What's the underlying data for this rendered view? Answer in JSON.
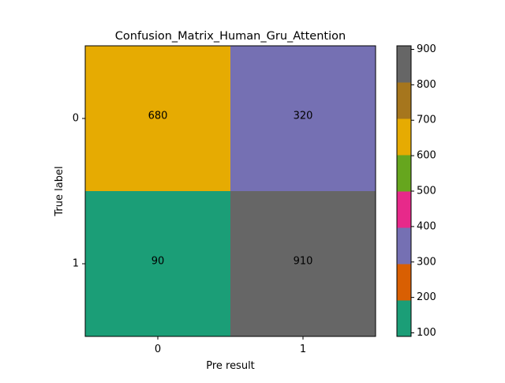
{
  "chart_data": {
    "type": "heatmap",
    "title": "Confusion_Matrix_Human_Gru_Attention",
    "xlabel": "Pre result",
    "ylabel": "True label",
    "x_categories": [
      "0",
      "1"
    ],
    "y_categories": [
      "0",
      "1"
    ],
    "values": [
      [
        680,
        320
      ],
      [
        90,
        910
      ]
    ],
    "colorbar": {
      "range": [
        90,
        910
      ],
      "ticks": [
        100,
        200,
        300,
        400,
        500,
        600,
        700,
        800,
        900
      ],
      "tick_labels": [
        "100",
        "200",
        "300",
        "400",
        "500",
        "600",
        "700",
        "800",
        "900"
      ],
      "colormap": "Dark2",
      "colors": [
        "#1b9e77",
        "#d95f02",
        "#7570b3",
        "#e7298a",
        "#66a61e",
        "#e6ab02",
        "#a6761d",
        "#666666"
      ]
    },
    "grid": false
  }
}
